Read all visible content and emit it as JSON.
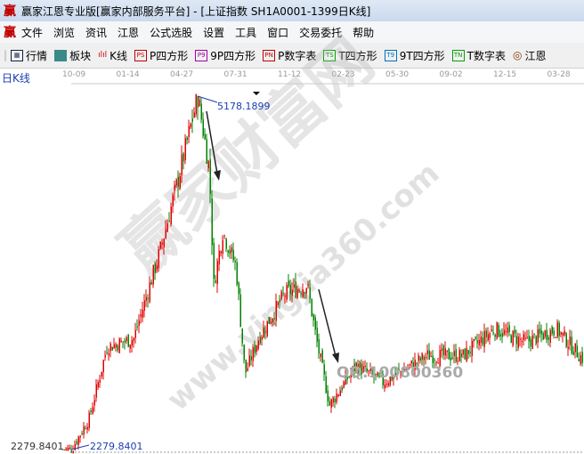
{
  "window": {
    "title": "赢家江恩专业版[赢家内部服务平台] - [上证指数  SH1A0001-1399日K线]",
    "logo": "赢"
  },
  "menu": [
    "文件",
    "浏览",
    "资讯",
    "江恩",
    "公式选股",
    "设置",
    "工具",
    "窗口",
    "交易委托",
    "帮助"
  ],
  "toolbar": [
    {
      "icon": "grid-icon",
      "label": "行情"
    },
    {
      "icon": "sector-icon",
      "label": "板块"
    },
    {
      "icon": "candle-icon",
      "label": "K线"
    },
    {
      "icon": "PS",
      "label": "P四方形",
      "color": "#c00000"
    },
    {
      "icon": "P9",
      "label": "9P四方形",
      "color": "#a000a0"
    },
    {
      "icon": "PN",
      "label": "P数字表",
      "color": "#c00000"
    },
    {
      "icon": "TS",
      "label": "T四方形",
      "color": "#00a000"
    },
    {
      "icon": "T9",
      "label": "9T四方形",
      "color": "#0070c0"
    },
    {
      "icon": "TN",
      "label": "T数字表",
      "color": "#00a000"
    },
    {
      "icon": "target-icon",
      "label": "江恩"
    }
  ],
  "chart_label": "日K线",
  "chart_data": {
    "type": "candlestick",
    "x_ticks": [
      "10-09",
      "01-14",
      "04-27",
      "07-31",
      "11-12",
      "02-23",
      "05-30",
      "09-02",
      "12-15",
      "03-28"
    ],
    "high_label": "5178.1899",
    "low_label": "2279.8401",
    "axis_low": "2279.8401",
    "ylim": [
      2279.8401,
      5178.1899
    ],
    "approx_close_path": [
      2280,
      2535,
      3120,
      3190,
      3920,
      4500,
      5178,
      4580,
      3630,
      4070,
      3780,
      2900,
      3190,
      3560,
      3630,
      3190,
      2645,
      2970,
      2830,
      3050,
      3050,
      3270,
      3160,
      3270,
      3010
    ],
    "up_color": "#e00000",
    "down_color": "#008000"
  },
  "watermark": {
    "text": "赢家财富网",
    "url": "www.yingjia360.com",
    "qq": "QQ:100800360"
  }
}
